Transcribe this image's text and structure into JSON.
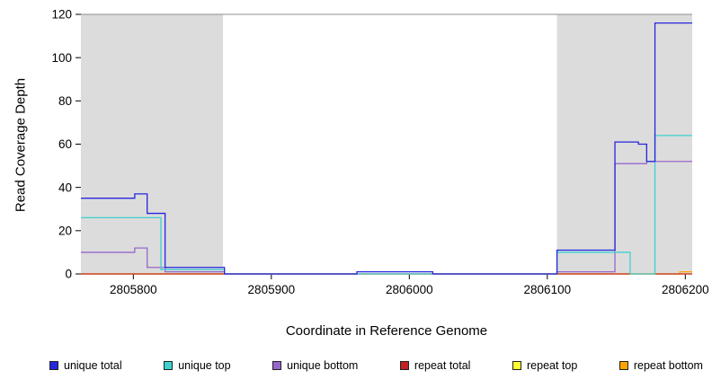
{
  "chart_data": {
    "type": "line",
    "subtype": "step-coverage",
    "title": "",
    "xlabel": "Coordinate in Reference Genome",
    "ylabel": "Read Coverage Depth",
    "x_domain": [
      2805762,
      2806205
    ],
    "y_domain": [
      0,
      120
    ],
    "grid": false,
    "x_tick_values": [
      2805800,
      2805900,
      2806000,
      2806100,
      2806200
    ],
    "x_tick_labels": [
      "2805800",
      "2805900",
      "2806000",
      "2806100",
      "2806200"
    ],
    "y_tick_values": [
      0,
      20,
      40,
      60,
      80,
      100,
      120
    ],
    "y_tick_labels": [
      "0",
      "20",
      "40",
      "60",
      "80",
      "100",
      "120"
    ],
    "shaded_regions": [
      {
        "x0": 2805762,
        "x1": 2805865,
        "color": "#DCDCDC"
      },
      {
        "x0": 2806107,
        "x1": 2806205,
        "color": "#DCDCDC"
      }
    ],
    "series": [
      {
        "name": "repeat bottom",
        "color": "#FFA500",
        "points": [
          [
            2805762,
            0
          ],
          [
            2806196,
            1
          ]
        ]
      },
      {
        "name": "repeat top",
        "color": "#FFFF33",
        "points": [
          [
            2805762,
            0
          ]
        ]
      },
      {
        "name": "repeat total",
        "color": "#C22222",
        "points": [
          [
            2805762,
            0
          ]
        ]
      },
      {
        "name": "unique bottom",
        "color": "#9966CC",
        "points": [
          [
            2805762,
            10
          ],
          [
            2805801,
            12
          ],
          [
            2805810,
            3
          ],
          [
            2805823,
            1
          ],
          [
            2805866,
            0
          ],
          [
            2806107,
            1
          ],
          [
            2806149,
            51
          ],
          [
            2806172,
            52
          ]
        ]
      },
      {
        "name": "unique top",
        "color": "#40D0D0",
        "points": [
          [
            2805762,
            26
          ],
          [
            2805820,
            2
          ],
          [
            2805866,
            0
          ],
          [
            2806107,
            10
          ],
          [
            2806160,
            0
          ],
          [
            2806178,
            64
          ]
        ]
      },
      {
        "name": "unique total",
        "color": "#2626DF",
        "points": [
          [
            2805762,
            35
          ],
          [
            2805801,
            37
          ],
          [
            2805810,
            28
          ],
          [
            2805823,
            3
          ],
          [
            2805866,
            0
          ],
          [
            2805962,
            1
          ],
          [
            2806017,
            0
          ],
          [
            2806107,
            11
          ],
          [
            2806149,
            61
          ],
          [
            2806166,
            60
          ],
          [
            2806172,
            52
          ],
          [
            2806178,
            116
          ]
        ]
      }
    ],
    "legend": [
      {
        "label": "unique total",
        "color": "#2626DF"
      },
      {
        "label": "unique top",
        "color": "#40D0D0"
      },
      {
        "label": "unique bottom",
        "color": "#9966CC"
      },
      {
        "label": "repeat total",
        "color": "#C22222"
      },
      {
        "label": "repeat top",
        "color": "#FFFF33"
      },
      {
        "label": "repeat bottom",
        "color": "#FFA500"
      }
    ],
    "legend_position": "bottom"
  }
}
